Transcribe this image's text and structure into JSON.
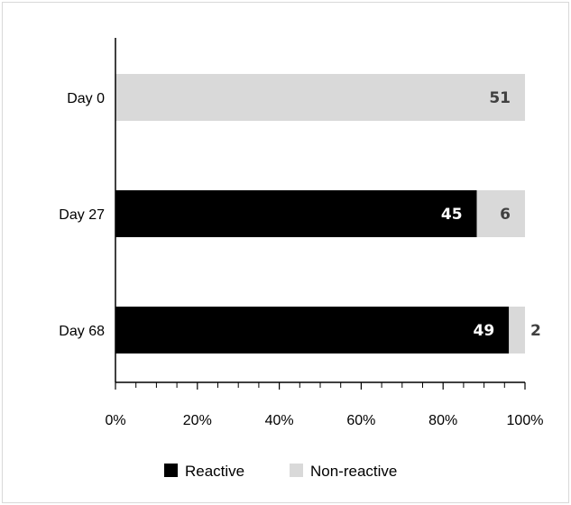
{
  "chart_data": {
    "type": "bar",
    "orientation": "horizontal",
    "stacked": true,
    "percent": true,
    "categories": [
      "Day 0",
      "Day 27",
      "Day 68"
    ],
    "series": [
      {
        "name": "Reactive",
        "values": [
          0,
          45,
          49
        ],
        "color": "#000000"
      },
      {
        "name": "Non-reactive",
        "values": [
          51,
          6,
          2
        ],
        "color": "#d9d9d9"
      }
    ],
    "xlim": [
      0,
      100
    ],
    "xticks": [
      "0%",
      "20%",
      "40%",
      "60%",
      "80%",
      "100%"
    ],
    "legend": "bottom",
    "grid": false,
    "title": "",
    "xlabel": "",
    "ylabel": ""
  }
}
